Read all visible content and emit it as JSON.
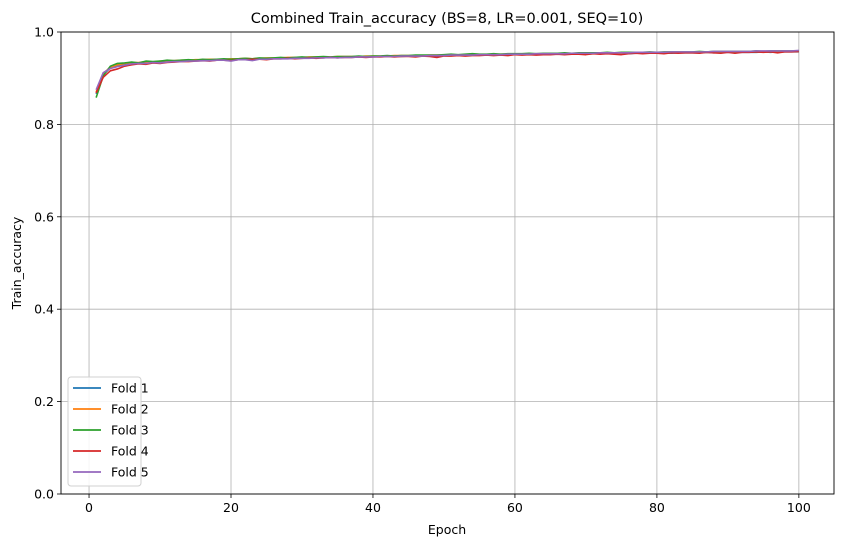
{
  "chart_data": {
    "type": "line",
    "title": "Combined Train_accuracy (BS=8, LR=0.001, SEQ=10)",
    "xlabel": "Epoch",
    "ylabel": "Train_accuracy",
    "xlim": [
      -3.95,
      104.95
    ],
    "ylim": [
      0.0,
      1.0
    ],
    "xticks": [
      0,
      20,
      40,
      60,
      80,
      100
    ],
    "yticks": [
      0.0,
      0.2,
      0.4,
      0.6,
      0.8,
      1.0
    ],
    "xtick_labels": [
      "0",
      "20",
      "40",
      "60",
      "80",
      "100"
    ],
    "ytick_labels": [
      "0.0",
      "0.2",
      "0.4",
      "0.6",
      "0.8",
      "1.0"
    ],
    "grid": true,
    "legend_position": "lower-left",
    "x_range": [
      1,
      100
    ],
    "series": [
      {
        "name": "Fold 1",
        "color": "#1f77b4",
        "values": [
          0.866,
          0.908,
          0.922,
          0.927,
          0.931,
          0.933,
          0.932,
          0.935,
          0.934,
          0.936,
          0.937,
          0.938,
          0.937,
          0.939,
          0.938,
          0.94,
          0.939,
          0.94,
          0.941,
          0.94,
          0.941,
          0.942,
          0.941,
          0.943,
          0.942,
          0.943,
          0.943,
          0.944,
          0.943,
          0.944,
          0.944,
          0.945,
          0.944,
          0.945,
          0.945,
          0.946,
          0.946,
          0.946,
          0.946,
          0.947,
          0.947,
          0.947,
          0.948,
          0.947,
          0.948,
          0.948,
          0.948,
          0.949,
          0.948,
          0.949,
          0.949,
          0.95,
          0.949,
          0.95,
          0.95,
          0.95,
          0.951,
          0.95,
          0.951,
          0.951,
          0.951,
          0.951,
          0.952,
          0.951,
          0.952,
          0.952,
          0.952,
          0.952,
          0.953,
          0.952,
          0.953,
          0.953,
          0.953,
          0.953,
          0.954,
          0.953,
          0.954,
          0.954,
          0.954,
          0.954,
          0.955,
          0.954,
          0.955,
          0.955,
          0.955,
          0.955,
          0.956,
          0.955,
          0.956,
          0.956,
          0.956,
          0.956,
          0.956,
          0.956,
          0.957,
          0.956,
          0.957,
          0.957,
          0.957,
          0.957
        ]
      },
      {
        "name": "Fold 2",
        "color": "#ff7f0e",
        "values": [
          0.87,
          0.91,
          0.924,
          0.929,
          0.932,
          0.934,
          0.934,
          0.936,
          0.935,
          0.937,
          0.938,
          0.938,
          0.939,
          0.939,
          0.94,
          0.94,
          0.941,
          0.941,
          0.941,
          0.942,
          0.942,
          0.943,
          0.942,
          0.943,
          0.944,
          0.944,
          0.944,
          0.945,
          0.945,
          0.945,
          0.946,
          0.946,
          0.946,
          0.946,
          0.947,
          0.947,
          0.947,
          0.947,
          0.948,
          0.948,
          0.948,
          0.948,
          0.949,
          0.949,
          0.949,
          0.949,
          0.949,
          0.95,
          0.95,
          0.95,
          0.95,
          0.95,
          0.951,
          0.951,
          0.951,
          0.951,
          0.951,
          0.952,
          0.952,
          0.952,
          0.952,
          0.952,
          0.952,
          0.953,
          0.953,
          0.953,
          0.953,
          0.953,
          0.953,
          0.954,
          0.954,
          0.954,
          0.954,
          0.954,
          0.954,
          0.955,
          0.955,
          0.955,
          0.955,
          0.955,
          0.955,
          0.955,
          0.956,
          0.956,
          0.956,
          0.956,
          0.956,
          0.956,
          0.956,
          0.957,
          0.957,
          0.957,
          0.957,
          0.957,
          0.957,
          0.957,
          0.958,
          0.958,
          0.958,
          0.958
        ]
      },
      {
        "name": "Fold 3",
        "color": "#2ca02c",
        "values": [
          0.858,
          0.905,
          0.926,
          0.932,
          0.933,
          0.935,
          0.933,
          0.937,
          0.936,
          0.937,
          0.939,
          0.938,
          0.939,
          0.94,
          0.939,
          0.941,
          0.94,
          0.941,
          0.942,
          0.941,
          0.942,
          0.943,
          0.942,
          0.944,
          0.943,
          0.944,
          0.945,
          0.944,
          0.945,
          0.946,
          0.945,
          0.946,
          0.947,
          0.946,
          0.947,
          0.947,
          0.947,
          0.948,
          0.947,
          0.948,
          0.948,
          0.949,
          0.948,
          0.949,
          0.949,
          0.95,
          0.95,
          0.95,
          0.95,
          0.951,
          0.952,
          0.951,
          0.952,
          0.953,
          0.952,
          0.952,
          0.953,
          0.952,
          0.953,
          0.953,
          0.953,
          0.954,
          0.953,
          0.954,
          0.954,
          0.954,
          0.955,
          0.954,
          0.955,
          0.955,
          0.955,
          0.955,
          0.956,
          0.955,
          0.956,
          0.956,
          0.956,
          0.956,
          0.957,
          0.956,
          0.957,
          0.957,
          0.957,
          0.957,
          0.957,
          0.958,
          0.957,
          0.958,
          0.958,
          0.958,
          0.958,
          0.958,
          0.958,
          0.959,
          0.958,
          0.959,
          0.959,
          0.959,
          0.959,
          0.959
        ]
      },
      {
        "name": "Fold 4",
        "color": "#d62728",
        "values": [
          0.868,
          0.902,
          0.916,
          0.92,
          0.926,
          0.929,
          0.931,
          0.93,
          0.933,
          0.932,
          0.934,
          0.935,
          0.936,
          0.936,
          0.937,
          0.938,
          0.937,
          0.939,
          0.939,
          0.938,
          0.94,
          0.94,
          0.941,
          0.941,
          0.94,
          0.942,
          0.942,
          0.943,
          0.942,
          0.943,
          0.944,
          0.943,
          0.944,
          0.945,
          0.944,
          0.945,
          0.945,
          0.946,
          0.945,
          0.946,
          0.946,
          0.947,
          0.946,
          0.947,
          0.947,
          0.946,
          0.948,
          0.947,
          0.945,
          0.948,
          0.948,
          0.949,
          0.948,
          0.949,
          0.949,
          0.95,
          0.949,
          0.95,
          0.949,
          0.951,
          0.95,
          0.951,
          0.95,
          0.951,
          0.951,
          0.952,
          0.951,
          0.952,
          0.952,
          0.951,
          0.953,
          0.952,
          0.953,
          0.952,
          0.951,
          0.953,
          0.954,
          0.953,
          0.954,
          0.954,
          0.953,
          0.955,
          0.954,
          0.955,
          0.955,
          0.954,
          0.956,
          0.955,
          0.954,
          0.956,
          0.954,
          0.956,
          0.956,
          0.957,
          0.956,
          0.957,
          0.955,
          0.957,
          0.957,
          0.958
        ]
      },
      {
        "name": "Fold 5",
        "color": "#9467bd",
        "values": [
          0.875,
          0.912,
          0.921,
          0.925,
          0.928,
          0.931,
          0.932,
          0.932,
          0.934,
          0.933,
          0.935,
          0.936,
          0.936,
          0.937,
          0.937,
          0.938,
          0.938,
          0.939,
          0.939,
          0.937,
          0.94,
          0.94,
          0.938,
          0.941,
          0.941,
          0.942,
          0.942,
          0.942,
          0.943,
          0.943,
          0.943,
          0.944,
          0.944,
          0.945,
          0.944,
          0.945,
          0.945,
          0.946,
          0.946,
          0.946,
          0.947,
          0.947,
          0.947,
          0.948,
          0.948,
          0.948,
          0.948,
          0.949,
          0.949,
          0.949,
          0.95,
          0.95,
          0.95,
          0.95,
          0.951,
          0.951,
          0.951,
          0.951,
          0.952,
          0.952,
          0.952,
          0.952,
          0.953,
          0.953,
          0.953,
          0.953,
          0.953,
          0.954,
          0.954,
          0.954,
          0.954,
          0.955,
          0.955,
          0.955,
          0.955,
          0.955,
          0.956,
          0.956,
          0.956,
          0.956,
          0.956,
          0.957,
          0.957,
          0.957,
          0.957,
          0.957,
          0.957,
          0.958,
          0.958,
          0.958,
          0.958,
          0.958,
          0.958,
          0.959,
          0.959,
          0.959,
          0.959,
          0.959,
          0.959,
          0.96
        ]
      }
    ]
  }
}
